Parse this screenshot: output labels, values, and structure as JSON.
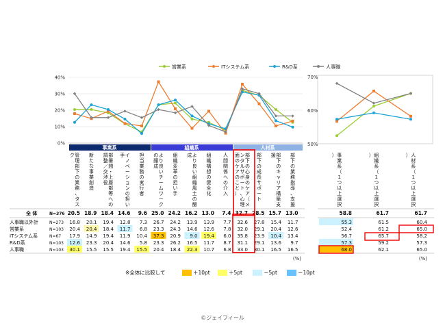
{
  "legend": {
    "items": [
      {
        "label": "営業系",
        "color": "#9acd32"
      },
      {
        "label": "ITシステム系",
        "color": "#ed7d31"
      },
      {
        "label": "R&D系",
        "color": "#1aa3d6"
      },
      {
        "label": "人事職",
        "color": "#808080"
      }
    ]
  },
  "groups": {
    "jigyo": "事業系",
    "soshiki": "組織系",
    "jinzai": "人材系"
  },
  "categories": [
    "管理 部下の業務、タスク",
    "新たな事業創造",
    "部署間・上層部等への調整／交渉役",
    "イノベーションの担い手",
    "担当業務の実行者",
    "より良いチームワークの醸成",
    "組織変革の担い手",
    "より良い組織風土の醸成",
    "組織構想の健全化",
    "人間関係への介入",
    "部下の心身のケア（メンタルサポート、心理面のケアのこと）",
    "部下の成長サポート",
    "部下のキャリア構築支援",
    "部下の業務指導、支援"
  ],
  "right_categories": [
    "事業系（1つ以上選択）",
    "組織系（1つ以上選択）",
    "人材系（1つ以上選択）"
  ],
  "rows": [
    {
      "label": "全 体",
      "n": "N=376",
      "values": [
        "20.5",
        "18.9",
        "18.4",
        "14.6",
        "9.6",
        "25.0",
        "24.2",
        "16.2",
        "13.0",
        "7.4",
        "32.7",
        "28.5",
        "15.7",
        "13.0"
      ],
      "right": [
        "58.8",
        "61.7",
        "61.7"
      ]
    },
    {
      "label": "人事職以外計",
      "n": "N=273",
      "values": [
        "16.8",
        "20.1",
        "19.4",
        "12.8",
        "7.3",
        "26.7",
        "24.2",
        "13.9",
        "13.9",
        "7.7",
        "32.6",
        "27.8",
        "15.4",
        "11.7"
      ],
      "right": [
        "55.3",
        "61.5",
        "60.4"
      ]
    },
    {
      "label": "営業系",
      "n": "N=103",
      "values": [
        "20.4",
        "20.4",
        "18.4",
        "11.7",
        "6.8",
        "23.3",
        "24.3",
        "14.6",
        "12.6",
        "7.8",
        "32.0",
        "29.1",
        "20.4",
        "12.6"
      ],
      "right": [
        "52.4",
        "61.2",
        "65.0"
      ]
    },
    {
      "label": "ITシステム系",
      "n": "N=67",
      "values": [
        "17.9",
        "14.9",
        "19.4",
        "11.9",
        "10.4",
        "37.3",
        "20.9",
        "9.0",
        "19.4",
        "6.0",
        "35.8",
        "23.9",
        "10.4",
        "13.4"
      ],
      "right": [
        "56.7",
        "65.7",
        "58.2"
      ]
    },
    {
      "label": "R&D系",
      "n": "N=103",
      "values": [
        "12.6",
        "23.3",
        "20.4",
        "14.6",
        "5.8",
        "23.3",
        "26.2",
        "16.5",
        "11.7",
        "8.7",
        "31.1",
        "29.1",
        "13.6",
        "9.7"
      ],
      "right": [
        "57.3",
        "59.2",
        "57.3"
      ]
    },
    {
      "label": "人事職",
      "n": "N=103",
      "values": [
        "30.1",
        "15.5",
        "15.5",
        "19.4",
        "15.5",
        "20.4",
        "18.4",
        "22.3",
        "10.7",
        "6.8",
        "33.0",
        "30.1",
        "16.5",
        "16.5"
      ],
      "right": [
        "68.0",
        "62.1",
        "65.0"
      ]
    }
  ],
  "percent_unit": "(%)",
  "footer_legend": {
    "intro": "※全体に比較して",
    "items": [
      {
        "label": "＋10pt",
        "color": "#ffc000"
      },
      {
        "label": "＋5pt",
        "color": "#ffff66"
      },
      {
        "label": "－5pt",
        "color": "#ccf2ff"
      },
      {
        "label": "－10pt",
        "color": "#66c2ff"
      }
    ]
  },
  "copyright": "©ジェイフィール",
  "chart_data": [
    {
      "type": "line",
      "y_ticks": [
        "40%",
        "30%",
        "20%",
        "10%",
        "0%"
      ],
      "ylim": [
        0,
        40
      ],
      "x": [
        1,
        2,
        3,
        4,
        5,
        6,
        7,
        8,
        9,
        10,
        11,
        12,
        13,
        14
      ],
      "series": [
        {
          "name": "営業系",
          "values": [
            20.4,
            20.4,
            18.4,
            11.7,
            6.8,
            23.3,
            24.3,
            14.6,
            12.6,
            7.8,
            32.0,
            29.1,
            20.4,
            12.6
          ]
        },
        {
          "name": "ITシステム系",
          "values": [
            17.9,
            14.9,
            19.4,
            11.9,
            10.4,
            37.3,
            20.9,
            9.0,
            19.4,
            6.0,
            35.8,
            23.9,
            10.4,
            13.4
          ]
        },
        {
          "name": "R&D系",
          "values": [
            12.6,
            23.3,
            20.4,
            14.6,
            5.8,
            23.3,
            26.2,
            16.5,
            11.7,
            8.7,
            31.1,
            29.1,
            13.6,
            9.7
          ]
        },
        {
          "name": "人事職",
          "values": [
            30.1,
            15.5,
            15.5,
            19.4,
            15.5,
            20.4,
            18.4,
            22.3,
            10.7,
            6.8,
            33.0,
            30.1,
            16.5,
            16.5
          ]
        }
      ]
    },
    {
      "type": "line",
      "y_ticks": [
        "70%",
        "60%",
        "50%"
      ],
      "ylim": [
        50,
        70
      ],
      "x": [
        1,
        2,
        3
      ],
      "series": [
        {
          "name": "営業系",
          "values": [
            52.4,
            61.2,
            65.0
          ]
        },
        {
          "name": "ITシステム系",
          "values": [
            56.7,
            65.7,
            58.2
          ]
        },
        {
          "name": "R&D系",
          "values": [
            57.3,
            59.2,
            57.3
          ]
        },
        {
          "name": "人事職",
          "values": [
            68.0,
            62.1,
            65.0
          ]
        }
      ]
    }
  ]
}
